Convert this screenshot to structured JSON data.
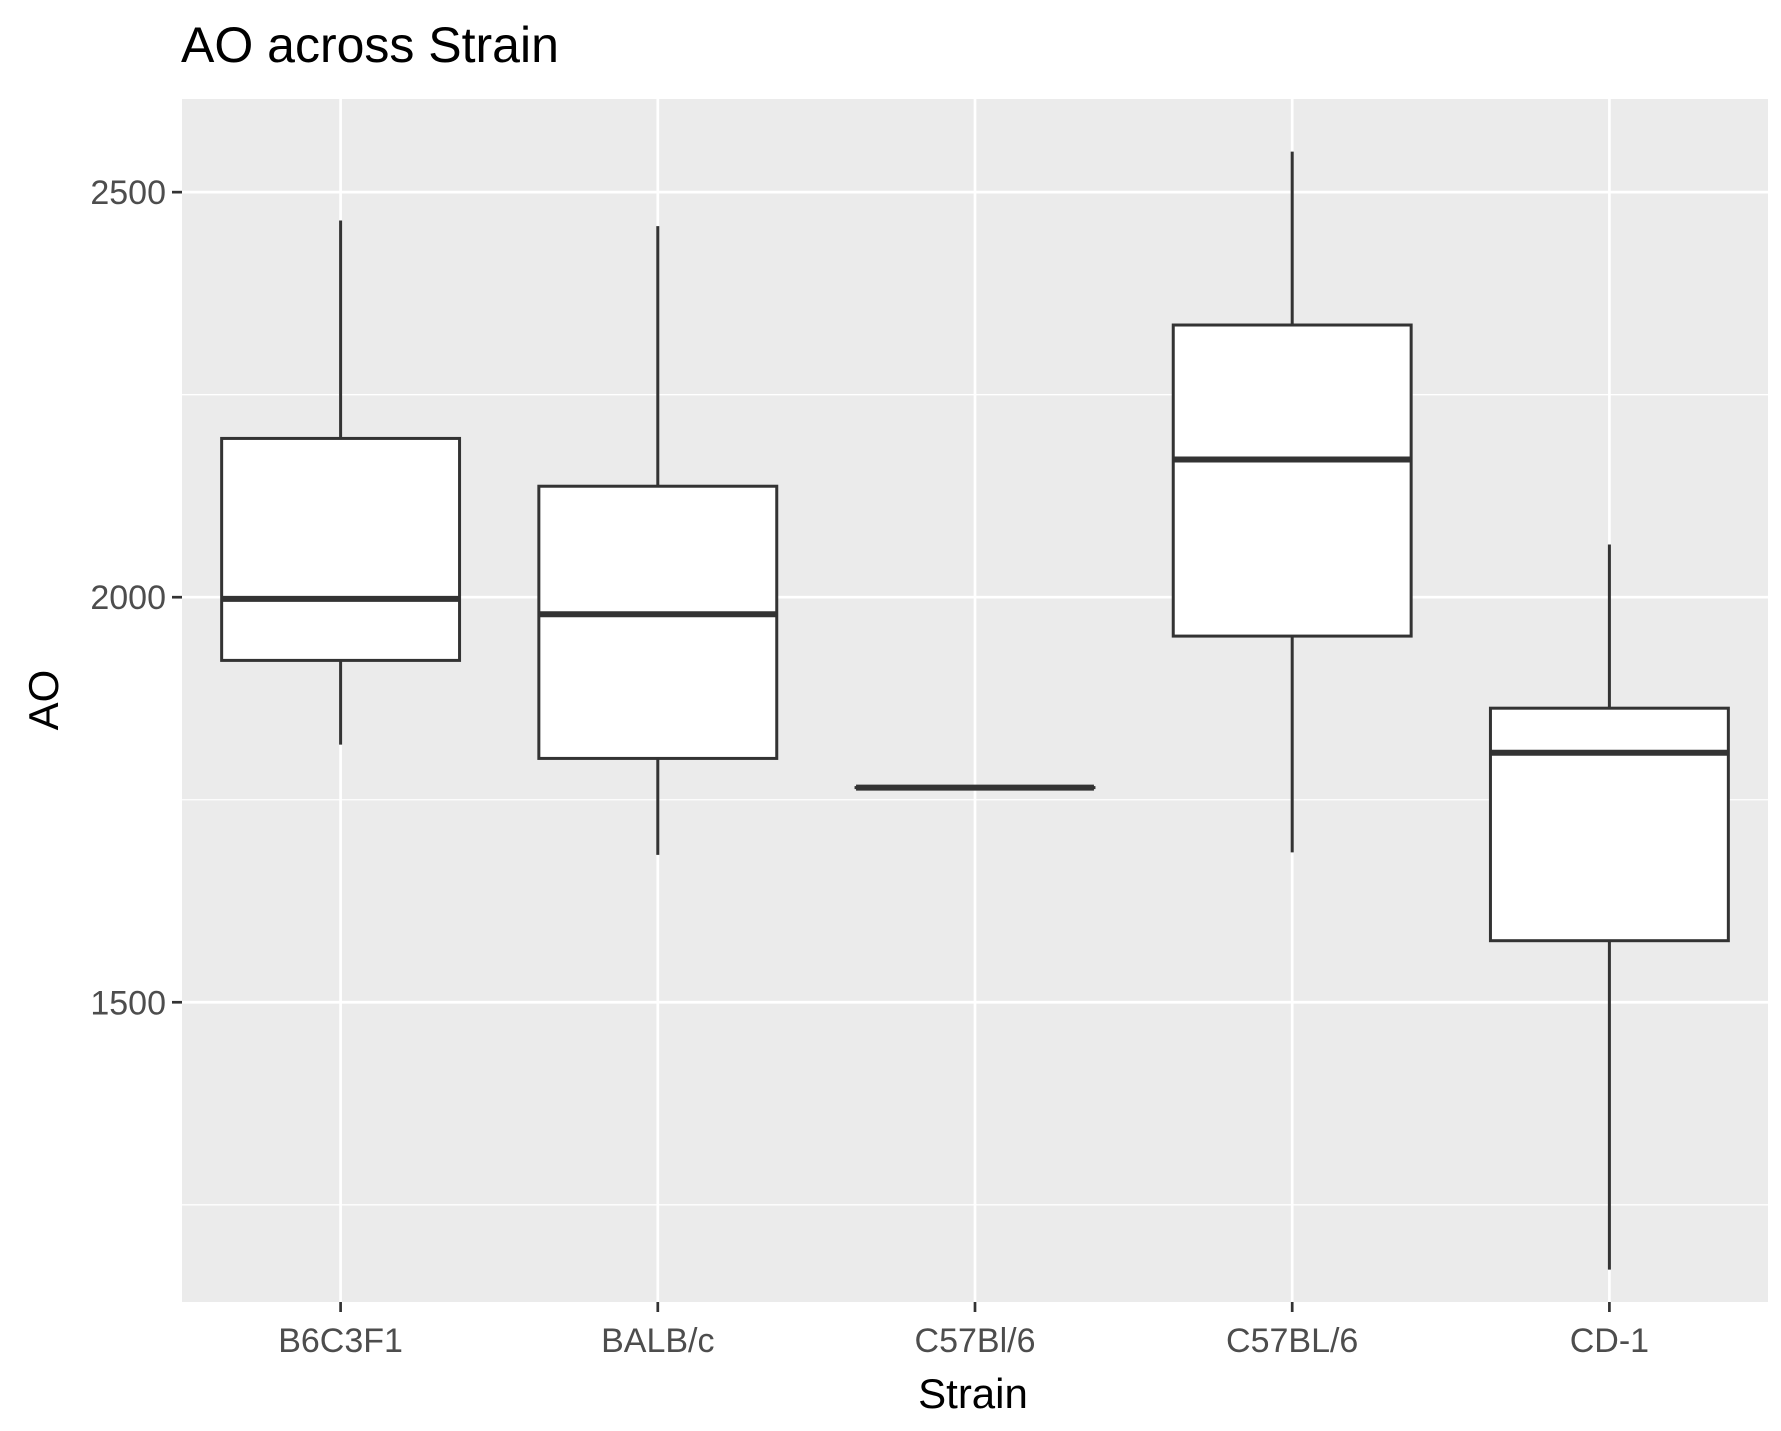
{
  "chart_data": {
    "type": "boxplot",
    "title": "AO across Strain",
    "xlabel": "Strain",
    "ylabel": "AO",
    "categories": [
      "B6C3F1",
      "BALB/c",
      "C57Bl/6",
      "C57BL/6",
      "CD-1"
    ],
    "y_ticks": [
      1500,
      2000,
      2500
    ],
    "y_tick_labels": [
      "1500",
      "2000",
      "2500"
    ],
    "ylim": [
      1130,
      2615
    ],
    "grid": true,
    "boxes": [
      {
        "category": "B6C3F1",
        "whisker_low": 1818,
        "q1": 1922,
        "median": 1998,
        "q3": 2196,
        "whisker_high": 2465
      },
      {
        "category": "BALB/c",
        "whisker_low": 1682,
        "q1": 1801,
        "median": 1979,
        "q3": 2137,
        "whisker_high": 2458
      },
      {
        "category": "C57Bl/6",
        "whisker_low": 1765,
        "q1": 1765,
        "median": 1765,
        "q3": 1765,
        "whisker_high": 1765
      },
      {
        "category": "C57BL/6",
        "whisker_low": 1685,
        "q1": 1952,
        "median": 2170,
        "q3": 2336,
        "whisker_high": 2550
      },
      {
        "category": "CD-1",
        "whisker_low": 1170,
        "q1": 1576,
        "median": 1808,
        "q3": 1863,
        "whisker_high": 2065
      }
    ],
    "colors": {
      "panel_background": "#ebebeb",
      "grid": "#ffffff",
      "box_fill": "#ffffff",
      "box_stroke": "#333333"
    }
  }
}
